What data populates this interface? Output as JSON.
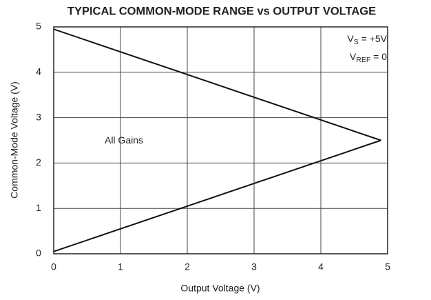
{
  "chart_data": {
    "type": "line",
    "title": "TYPICAL COMMON-MODE RANGE vs OUTPUT VOLTAGE",
    "x_label": "Output Voltage (V)",
    "y_label": "Common-Mode Voltage (V)",
    "x": [
      0,
      4.9
    ],
    "series": [
      {
        "color": "#111111",
        "values": [
          4.95,
          2.5
        ]
      },
      {
        "color": "#111111",
        "values": [
          0.05,
          2.5
        ]
      }
    ],
    "xlim": [
      0,
      5
    ],
    "xticks": [
      0,
      1,
      2,
      3,
      4,
      5
    ],
    "ylim": [
      0,
      5
    ],
    "yticks": [
      0,
      1,
      2,
      3,
      4,
      5
    ],
    "grid": true,
    "annotations": [
      {
        "text": "V",
        "sub": "S",
        "after": " = +5V"
      },
      {
        "text": "V",
        "sub": "REF",
        "after": " = 0"
      },
      {
        "text": "All Gains"
      }
    ]
  }
}
